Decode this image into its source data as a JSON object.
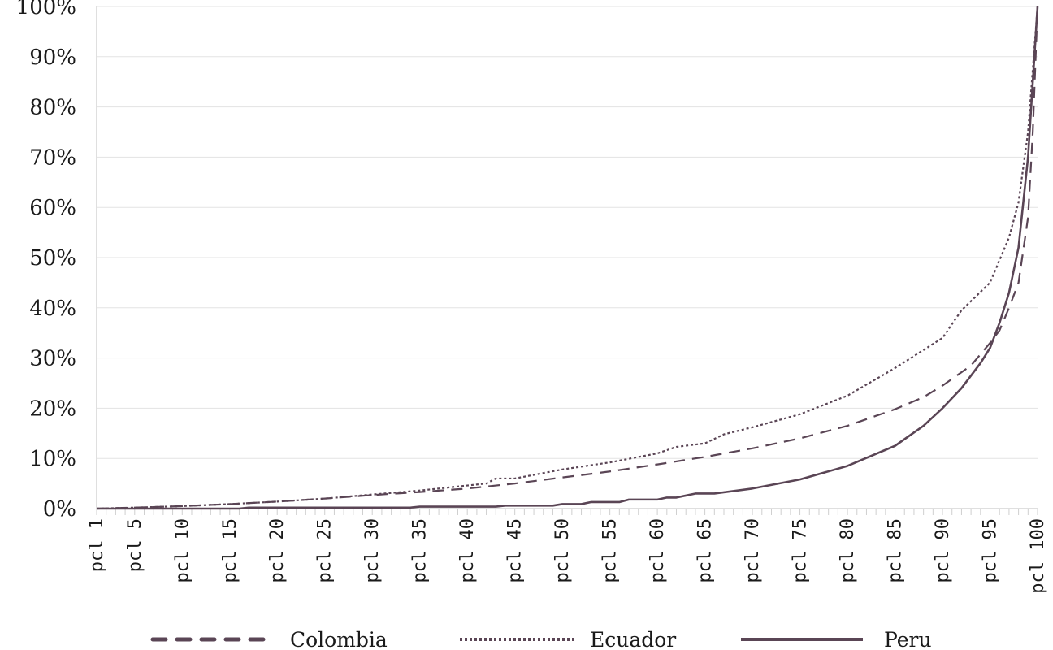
{
  "chart_data": {
    "type": "line",
    "title": "",
    "xlabel": "",
    "ylabel": "",
    "ylim": [
      0,
      100
    ],
    "y_ticks": [
      "0%",
      "10%",
      "20%",
      "30%",
      "40%",
      "50%",
      "60%",
      "70%",
      "80%",
      "90%",
      "100%"
    ],
    "x_tick_labels": [
      "pcl 1",
      "pcl 5",
      "pcl 10",
      "pcl 15",
      "pcl 20",
      "pcl 25",
      "pcl 30",
      "pcl 35",
      "pcl 40",
      "pcl 45",
      "pcl 50",
      "pcl 55",
      "pcl 60",
      "pcl 65",
      "pcl 70",
      "pcl 75",
      "pcl 80",
      "pcl 85",
      "pcl 90",
      "pcl 95",
      "pcl 100"
    ],
    "x_tick_percentiles": [
      1,
      5,
      10,
      15,
      20,
      25,
      30,
      35,
      40,
      45,
      50,
      55,
      60,
      65,
      70,
      75,
      80,
      85,
      90,
      95,
      100
    ],
    "x_range": [
      1,
      100
    ],
    "legend_position": "bottom",
    "series": [
      {
        "name": "Colombia",
        "style": "dashed",
        "color": "#5a4555",
        "points": [
          [
            1,
            0
          ],
          [
            5,
            0.2
          ],
          [
            10,
            0.5
          ],
          [
            15,
            0.9
          ],
          [
            20,
            1.4
          ],
          [
            25,
            2
          ],
          [
            30,
            2.7
          ],
          [
            35,
            3.3
          ],
          [
            40,
            4
          ],
          [
            45,
            5
          ],
          [
            50,
            6.2
          ],
          [
            55,
            7.4
          ],
          [
            60,
            8.8
          ],
          [
            65,
            10.3
          ],
          [
            70,
            12
          ],
          [
            75,
            14
          ],
          [
            80,
            16.5
          ],
          [
            85,
            19.8
          ],
          [
            88,
            22.2
          ],
          [
            90,
            24.5
          ],
          [
            93,
            28.5
          ],
          [
            95,
            33
          ],
          [
            96,
            35.5
          ],
          [
            97,
            40
          ],
          [
            98,
            45
          ],
          [
            99,
            58
          ],
          [
            99.5,
            75
          ],
          [
            100,
            100
          ]
        ]
      },
      {
        "name": "Ecuador",
        "style": "dotted",
        "color": "#5a4555",
        "points": [
          [
            1,
            0
          ],
          [
            5,
            0.2
          ],
          [
            10,
            0.5
          ],
          [
            15,
            0.9
          ],
          [
            20,
            1.4
          ],
          [
            25,
            2
          ],
          [
            30,
            2.8
          ],
          [
            35,
            3.6
          ],
          [
            40,
            4.6
          ],
          [
            42,
            5
          ],
          [
            43,
            6
          ],
          [
            45,
            6
          ],
          [
            50,
            7.8
          ],
          [
            55,
            9.2
          ],
          [
            60,
            11
          ],
          [
            62,
            12.3
          ],
          [
            65,
            13
          ],
          [
            67,
            14.8
          ],
          [
            70,
            16.2
          ],
          [
            75,
            18.8
          ],
          [
            80,
            22.5
          ],
          [
            85,
            28
          ],
          [
            90,
            34
          ],
          [
            92,
            39.5
          ],
          [
            95,
            45
          ],
          [
            97,
            54
          ],
          [
            98,
            61
          ],
          [
            99,
            75
          ],
          [
            100,
            100
          ]
        ]
      },
      {
        "name": "Peru",
        "style": "solid",
        "color": "#5a4555",
        "points": [
          [
            1,
            0
          ],
          [
            16,
            0
          ],
          [
            17,
            0.2
          ],
          [
            34,
            0.2
          ],
          [
            35,
            0.4
          ],
          [
            43,
            0.4
          ],
          [
            44,
            0.6
          ],
          [
            49,
            0.6
          ],
          [
            50,
            0.9
          ],
          [
            52,
            0.9
          ],
          [
            53,
            1.3
          ],
          [
            56,
            1.3
          ],
          [
            57,
            1.8
          ],
          [
            60,
            1.8
          ],
          [
            61,
            2.2
          ],
          [
            62,
            2.2
          ],
          [
            63,
            2.6
          ],
          [
            64,
            3
          ],
          [
            66,
            3
          ],
          [
            70,
            4
          ],
          [
            75,
            5.8
          ],
          [
            80,
            8.5
          ],
          [
            85,
            12.5
          ],
          [
            88,
            16.5
          ],
          [
            90,
            20
          ],
          [
            92,
            24
          ],
          [
            94,
            29
          ],
          [
            95,
            32
          ],
          [
            96,
            37
          ],
          [
            97,
            43
          ],
          [
            98,
            52
          ],
          [
            99,
            70
          ],
          [
            100,
            100
          ]
        ]
      }
    ]
  }
}
